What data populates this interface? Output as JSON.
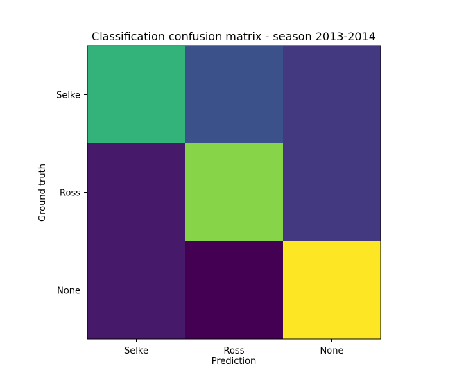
{
  "chart_data": {
    "type": "heatmap",
    "title": "Classification confusion matrix - season 2013-2014",
    "xlabel": "Prediction",
    "ylabel": "Ground truth",
    "x_categories": [
      "Selke",
      "Ross",
      "None"
    ],
    "y_categories": [
      "Selke",
      "Ross",
      "None"
    ],
    "colormap": "viridis",
    "values": [
      [
        0.65,
        0.25,
        0.17
      ],
      [
        0.07,
        0.82,
        0.17
      ],
      [
        0.07,
        0.0,
        1.0
      ]
    ],
    "value_range": [
      0,
      1
    ],
    "grid": false,
    "colorbar": false
  }
}
